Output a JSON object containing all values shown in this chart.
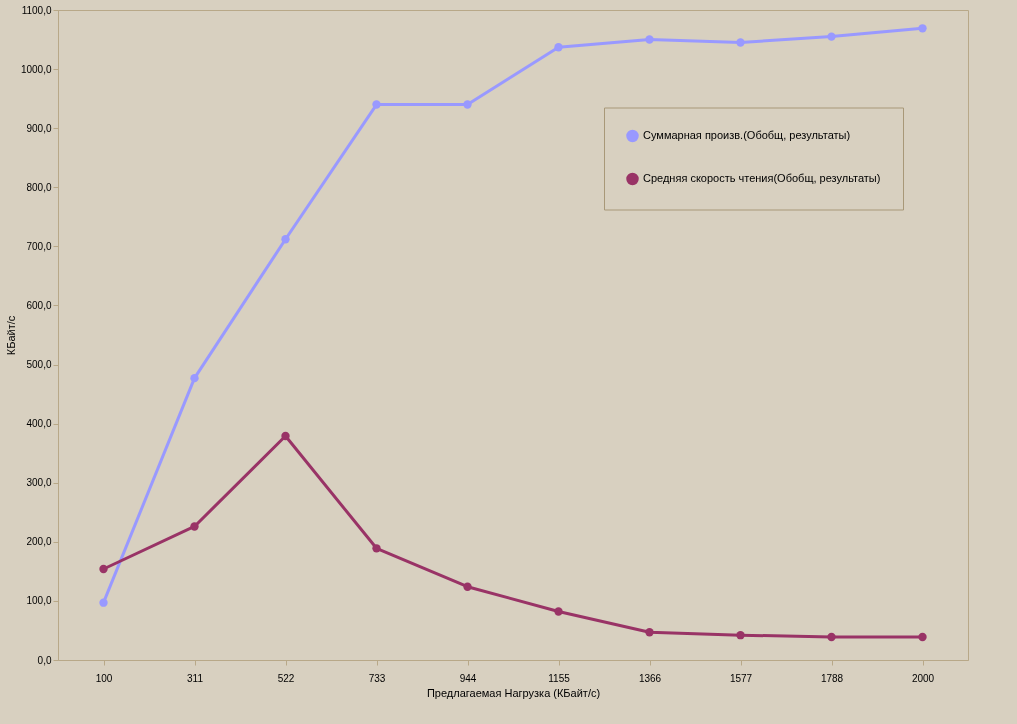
{
  "chart_data": {
    "type": "line",
    "xlabel": "Предлагаемая Нагрузка (КБайт/с)",
    "ylabel": "КБайт/с",
    "categories": [
      "100",
      "311",
      "522",
      "733",
      "944",
      "1155",
      "1366",
      "1577",
      "1788",
      "2000"
    ],
    "series": [
      {
        "name": "Суммарная произв.(Обобщ, результаты)",
        "color": "#9999ff",
        "values": [
          97,
          477,
          712,
          940,
          940,
          1037,
          1050,
          1045,
          1055,
          1069
        ]
      },
      {
        "name": "Средняя скорость чтения(Обобщ, результаты)",
        "color": "#993366",
        "values": [
          154,
          226,
          379,
          189,
          124,
          82,
          47,
          42,
          39,
          39
        ]
      }
    ],
    "ylim": [
      0,
      1100
    ],
    "yticks": [
      {
        "value": 0,
        "label": "0,0"
      },
      {
        "value": 100,
        "label": "100,0"
      },
      {
        "value": 200,
        "label": "200,0"
      },
      {
        "value": 300,
        "label": "300,0"
      },
      {
        "value": 400,
        "label": "400,0"
      },
      {
        "value": 500,
        "label": "500,0"
      },
      {
        "value": 600,
        "label": "600,0"
      },
      {
        "value": 700,
        "label": "700,0"
      },
      {
        "value": 800,
        "label": "800,0"
      },
      {
        "value": 900,
        "label": "900,0"
      },
      {
        "value": 1000,
        "label": "1000,0"
      },
      {
        "value": 1100,
        "label": "1100,0"
      }
    ],
    "grid": false,
    "legend": "top right",
    "marker": "circle",
    "line_style": "solid"
  }
}
